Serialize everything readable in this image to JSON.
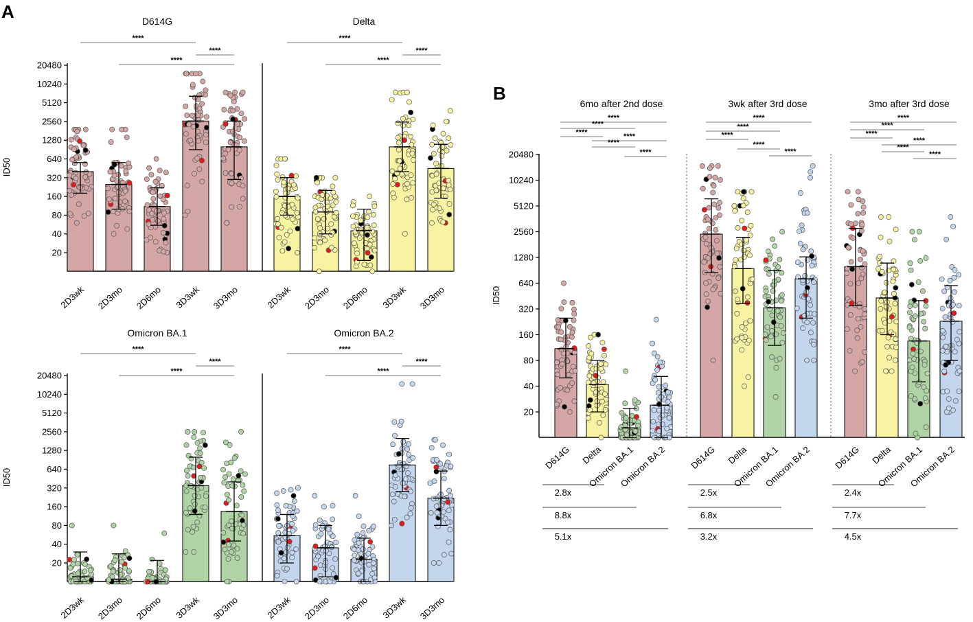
{
  "figure": {
    "panel_a_label": "A",
    "panel_b_label": "B"
  },
  "colors": {
    "D614G": "#d4a6a6",
    "Delta": "#f8f3a2",
    "Omicron BA.1": "#b0d4a6",
    "Omicron BA.2": "#c3d6ee",
    "dot_black": "#000000",
    "dot_red": "#e01b1b"
  },
  "chart_data": [
    {
      "id": "A1",
      "type": "bar",
      "title": "D614G",
      "ylabel": "ID50",
      "y_scale": "log2",
      "ylim": [
        10,
        20480
      ],
      "yticks": [
        "20",
        "40",
        "80",
        "160",
        "320",
        "640",
        "1280",
        "2560",
        "5120",
        "10240",
        "20480"
      ],
      "categories": [
        "2D3wk",
        "2D3mo",
        "2D6mo",
        "3D3wk",
        "3D3mo"
      ],
      "variant": "D614G",
      "values": [
        400,
        250,
        110,
        2600,
        1000
      ],
      "errors": [
        [
          180,
          560
        ],
        [
          100,
          560
        ],
        [
          55,
          220
        ],
        [
          900,
          6500
        ],
        [
          300,
          2600
        ]
      ],
      "point_ranges": [
        [
          60,
          1900
        ],
        [
          40,
          1900
        ],
        [
          20,
          640
        ],
        [
          80,
          15000
        ],
        [
          60,
          7500
        ]
      ],
      "significance": [
        {
          "from": 0,
          "to": 3,
          "label": "****"
        },
        {
          "from": 3,
          "to": 4,
          "label": "****"
        },
        {
          "from": 1,
          "to": 4,
          "label": "****"
        }
      ]
    },
    {
      "id": "A2",
      "type": "bar",
      "title": "Delta",
      "ylabel": "",
      "y_scale": "log2",
      "ylim": [
        10,
        20480
      ],
      "categories": [
        "2D3wk",
        "2D3mo",
        "2D6mo",
        "3D3wk",
        "3D3mo"
      ],
      "variant": "Delta",
      "values": [
        160,
        90,
        45,
        1000,
        450
      ],
      "errors": [
        [
          80,
          320
        ],
        [
          40,
          200
        ],
        [
          15,
          100
        ],
        [
          400,
          2500
        ],
        [
          150,
          1100
        ]
      ],
      "point_ranges": [
        [
          20,
          640
        ],
        [
          10,
          320
        ],
        [
          10,
          160
        ],
        [
          40,
          7500
        ],
        [
          60,
          3800
        ]
      ],
      "significance": [
        {
          "from": 0,
          "to": 3,
          "label": "****"
        },
        {
          "from": 3,
          "to": 4,
          "label": "****"
        },
        {
          "from": 1,
          "to": 4,
          "label": "****"
        }
      ]
    },
    {
      "id": "A3",
      "type": "bar",
      "title": "Omicron BA.1",
      "ylabel": "ID50",
      "y_scale": "log2",
      "ylim": [
        10,
        20480
      ],
      "yticks": [
        "20",
        "40",
        "80",
        "160",
        "320",
        "640",
        "1280",
        "2560",
        "5120",
        "10240",
        "20480"
      ],
      "categories": [
        "2D3wk",
        "2D3mo",
        "2D6mo",
        "3D3wk",
        "3D3mo"
      ],
      "variant": "Omicron BA.1",
      "values": [
        12,
        11,
        9,
        350,
        135
      ],
      "errors": [
        [
          10,
          30
        ],
        [
          10,
          28
        ],
        [
          10,
          22
        ],
        [
          120,
          1000
        ],
        [
          45,
          400
        ]
      ],
      "point_ranges": [
        [
          10,
          80
        ],
        [
          10,
          80
        ],
        [
          10,
          60
        ],
        [
          30,
          2560
        ],
        [
          10,
          2560
        ]
      ],
      "significance": [
        {
          "from": 0,
          "to": 3,
          "label": "****"
        },
        {
          "from": 3,
          "to": 4,
          "label": "****"
        },
        {
          "from": 1,
          "to": 4,
          "label": "****"
        }
      ]
    },
    {
      "id": "A4",
      "type": "bar",
      "title": "Omicron BA.2",
      "ylabel": "",
      "y_scale": "log2",
      "ylim": [
        10,
        20480
      ],
      "categories": [
        "2D3wk",
        "2D3mo",
        "2D6mo",
        "3D3wk",
        "3D3mo"
      ],
      "variant": "Omicron BA.2",
      "values": [
        55,
        35,
        23,
        750,
        220
      ],
      "errors": [
        [
          20,
          120
        ],
        [
          12,
          80
        ],
        [
          10,
          50
        ],
        [
          280,
          2000
        ],
        [
          80,
          600
        ]
      ],
      "point_ranges": [
        [
          10,
          320
        ],
        [
          10,
          240
        ],
        [
          10,
          240
        ],
        [
          80,
          15000
        ],
        [
          20,
          1900
        ]
      ],
      "significance": [
        {
          "from": 0,
          "to": 3,
          "label": "****"
        },
        {
          "from": 3,
          "to": 4,
          "label": "****"
        },
        {
          "from": 1,
          "to": 4,
          "label": "****"
        }
      ]
    },
    {
      "id": "B",
      "type": "bar",
      "ylabel": "ID50",
      "y_scale": "log2",
      "ylim": [
        10,
        20480
      ],
      "yticks": [
        "20",
        "40",
        "80",
        "160",
        "320",
        "640",
        "1280",
        "2560",
        "5120",
        "10240",
        "20480"
      ],
      "groups": [
        {
          "title": "6mo after 2nd dose",
          "categories": [
            "D614G",
            "Delta",
            "Omicron BA.1",
            "Omicron BA.2"
          ],
          "values": [
            110,
            42,
            13,
            24
          ],
          "errors": [
            [
              50,
              250
            ],
            [
              20,
              80
            ],
            [
              10,
              22
            ],
            [
              10,
              52
            ]
          ],
          "point_ranges": [
            [
              20,
              640
            ],
            [
              10,
              160
            ],
            [
              10,
              60
            ],
            [
              10,
              240
            ]
          ],
          "significance": [
            {
              "from": 0,
              "to": 3,
              "label": "****"
            },
            {
              "from": 0,
              "to": 2,
              "label": "****"
            },
            {
              "from": 0,
              "to": 1,
              "label": "****"
            },
            {
              "from": 1,
              "to": 3,
              "label": "****"
            },
            {
              "from": 1,
              "to": 2,
              "label": "****"
            },
            {
              "from": 2,
              "to": 3,
              "label": "****"
            }
          ],
          "fold_changes": [
            {
              "from": 0,
              "to": 1,
              "label": "2.8x"
            },
            {
              "from": 0,
              "to": 2,
              "label": "8.8x"
            },
            {
              "from": 0,
              "to": 3,
              "label": "5.1x"
            }
          ]
        },
        {
          "title": "3wk after 3rd dose",
          "categories": [
            "D614G",
            "Delta",
            "Omicron BA.1",
            "Omicron BA.2"
          ],
          "values": [
            2400,
            950,
            330,
            720
          ],
          "errors": [
            [
              850,
              6200
            ],
            [
              370,
              2200
            ],
            [
              120,
              900
            ],
            [
              250,
              1300
            ]
          ],
          "point_ranges": [
            [
              80,
              15000
            ],
            [
              40,
              7500
            ],
            [
              30,
              2560
            ],
            [
              80,
              15000
            ]
          ],
          "significance": [
            {
              "from": 0,
              "to": 3,
              "label": "****"
            },
            {
              "from": 0,
              "to": 2,
              "label": "****"
            },
            {
              "from": 0,
              "to": 1,
              "label": "****"
            },
            {
              "from": 1,
              "to": 2,
              "label": "****"
            },
            {
              "from": 2,
              "to": 3,
              "label": "****"
            }
          ],
          "fold_changes": [
            {
              "from": 0,
              "to": 1,
              "label": "2.5x"
            },
            {
              "from": 0,
              "to": 2,
              "label": "6.8x"
            },
            {
              "from": 0,
              "to": 3,
              "label": "3.2x"
            }
          ]
        },
        {
          "title": "3mo after 3rd dose",
          "categories": [
            "D614G",
            "Delta",
            "Omicron BA.1",
            "Omicron BA.2"
          ],
          "values": [
            1000,
            430,
            135,
            230
          ],
          "errors": [
            [
              350,
              2800
            ],
            [
              160,
              1100
            ],
            [
              45,
              400
            ],
            [
              80,
              600
            ]
          ],
          "point_ranges": [
            [
              60,
              7500
            ],
            [
              60,
              3800
            ],
            [
              10,
              2560
            ],
            [
              20,
              3800
            ]
          ],
          "significance": [
            {
              "from": 0,
              "to": 3,
              "label": "****"
            },
            {
              "from": 0,
              "to": 2,
              "label": "****"
            },
            {
              "from": 0,
              "to": 1,
              "label": "****"
            },
            {
              "from": 1,
              "to": 3,
              "label": "****"
            },
            {
              "from": 1,
              "to": 2,
              "label": "****"
            },
            {
              "from": 2,
              "to": 3,
              "label": "****"
            }
          ],
          "fold_changes": [
            {
              "from": 0,
              "to": 1,
              "label": "2.4x"
            },
            {
              "from": 0,
              "to": 2,
              "label": "7.7x"
            },
            {
              "from": 0,
              "to": 3,
              "label": "4.5x"
            }
          ]
        }
      ]
    }
  ]
}
